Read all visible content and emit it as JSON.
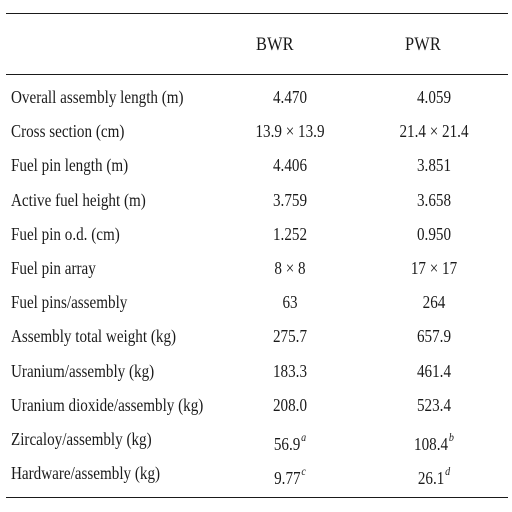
{
  "table": {
    "columns": [
      "",
      "BWR",
      "PWR"
    ],
    "rows": [
      {
        "label": "Overall assembly length (m)",
        "bwr": "4.470",
        "pwr": "4.059",
        "bwr_note": "",
        "pwr_note": ""
      },
      {
        "label": "Cross section (cm)",
        "bwr": "13.9 × 13.9",
        "pwr": "21.4 × 21.4",
        "bwr_note": "",
        "pwr_note": ""
      },
      {
        "label": "Fuel pin length (m)",
        "bwr": "4.406",
        "pwr": "3.851",
        "bwr_note": "",
        "pwr_note": ""
      },
      {
        "label": "Active fuel height (m)",
        "bwr": "3.759",
        "pwr": "3.658",
        "bwr_note": "",
        "pwr_note": ""
      },
      {
        "label": "Fuel pin o.d. (cm)",
        "bwr": "1.252",
        "pwr": "0.950",
        "bwr_note": "",
        "pwr_note": ""
      },
      {
        "label": "Fuel pin array",
        "bwr": "8 × 8",
        "pwr": "17 × 17",
        "bwr_note": "",
        "pwr_note": ""
      },
      {
        "label": "Fuel pins/assembly",
        "bwr": "63",
        "pwr": "264",
        "bwr_note": "",
        "pwr_note": ""
      },
      {
        "label": "Assembly total weight (kg)",
        "bwr": "275.7",
        "pwr": "657.9",
        "bwr_note": "",
        "pwr_note": ""
      },
      {
        "label": "Uranium/assembly (kg)",
        "bwr": "183.3",
        "pwr": "461.4",
        "bwr_note": "",
        "pwr_note": ""
      },
      {
        "label": "Uranium dioxide/assembly (kg)",
        "bwr": "208.0",
        "pwr": "523.4",
        "bwr_note": "",
        "pwr_note": ""
      },
      {
        "label": "Zircaloy/assembly (kg)",
        "bwr": "56.9",
        "pwr": "108.4",
        "bwr_note": "a",
        "pwr_note": "b"
      },
      {
        "label": "Hardware/assembly (kg)",
        "bwr": "9.77",
        "pwr": "26.1",
        "bwr_note": "c",
        "pwr_note": "d"
      }
    ]
  }
}
